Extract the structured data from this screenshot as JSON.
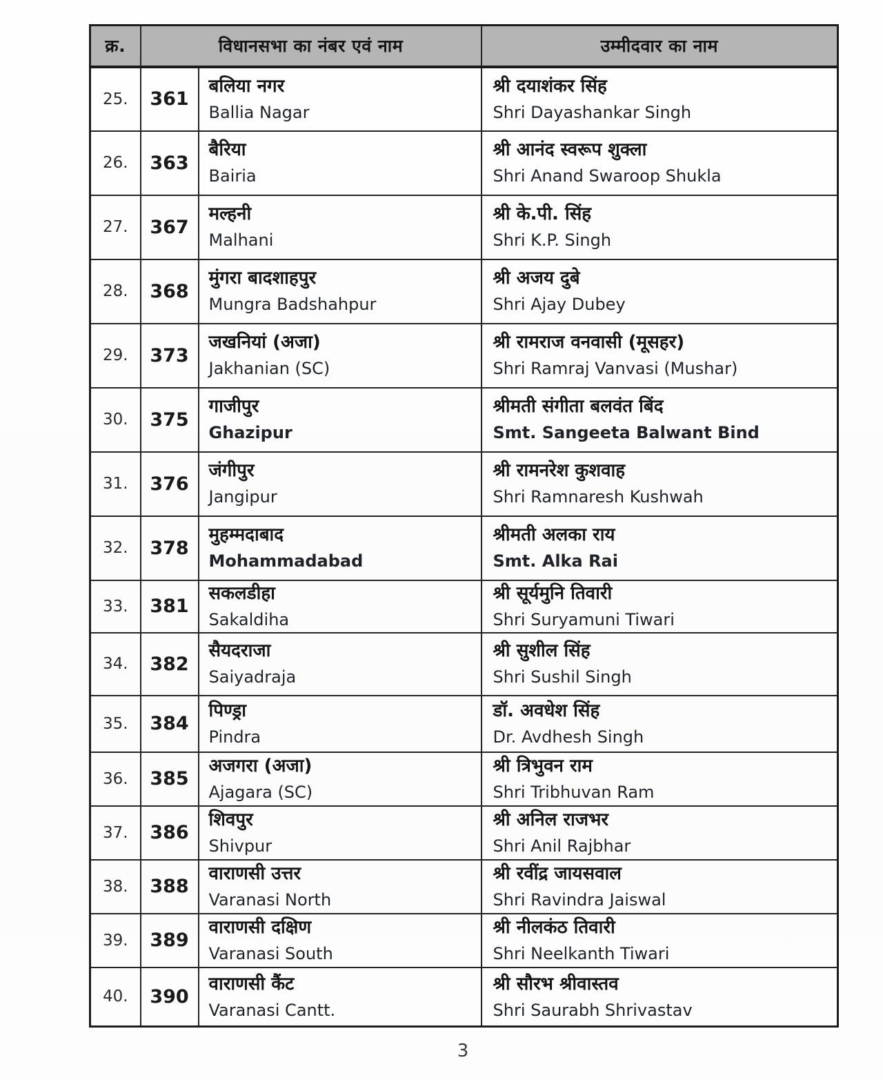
{
  "document": {
    "page_number": "3",
    "table": {
      "headers": {
        "serial": "क्र.",
        "constituency": "विधानसभा का नंबर एवं नाम",
        "candidate": "उम्मीदवार का नाम"
      },
      "rows": [
        {
          "serial": "25.",
          "number": "361",
          "name_hi": "बलिया नगर",
          "name_en": "Ballia Nagar",
          "candidate_hi": "श्री दयाशंकर सिंह",
          "candidate_en": "Shri Dayashankar Singh",
          "bold": false
        },
        {
          "serial": "26.",
          "number": "363",
          "name_hi": "बैरिया",
          "name_en": "Bairia",
          "candidate_hi": "श्री आनंद स्वरूप शुक्ला",
          "candidate_en": "Shri Anand Swaroop Shukla",
          "bold": false
        },
        {
          "serial": "27.",
          "number": "367",
          "name_hi": "मल्हनी",
          "name_en": "Malhani",
          "candidate_hi": "श्री के.पी. सिंह",
          "candidate_en": "Shri K.P. Singh",
          "bold": false
        },
        {
          "serial": "28.",
          "number": "368",
          "name_hi": "मुंगरा बादशाहपुर",
          "name_en": "Mungra Badshahpur",
          "candidate_hi": "श्री अजय दुबे",
          "candidate_en": "Shri Ajay Dubey",
          "bold": false
        },
        {
          "serial": "29.",
          "number": "373",
          "name_hi": "जखनियां (अजा)",
          "name_en": "Jakhanian (SC)",
          "candidate_hi": "श्री रामराज वनवासी (मूसहर)",
          "candidate_en": "Shri Ramraj Vanvasi (Mushar)",
          "bold": false
        },
        {
          "serial": "30.",
          "number": "375",
          "name_hi": "गाजीपुर",
          "name_en": "Ghazipur",
          "candidate_hi": "श्रीमती संगीता बलवंत बिंद",
          "candidate_en": "Smt. Sangeeta Balwant Bind",
          "bold": true
        },
        {
          "serial": "31.",
          "number": "376",
          "name_hi": "जंगीपुर",
          "name_en": "Jangipur",
          "candidate_hi": "श्री रामनरेश कुशवाह",
          "candidate_en": "Shri Ramnaresh Kushwah",
          "bold": false
        },
        {
          "serial": "32.",
          "number": "378",
          "name_hi": "मुहम्मदाबाद",
          "name_en": "Mohammadabad",
          "candidate_hi": "श्रीमती अलका राय",
          "candidate_en": "Smt. Alka Rai",
          "bold": true
        },
        {
          "serial": "33.",
          "number": "381",
          "name_hi": "सकलडीहा",
          "name_en": "Sakaldiha",
          "candidate_hi": "श्री सूर्यमुनि तिवारी",
          "candidate_en": "Shri Suryamuni Tiwari",
          "bold": false
        },
        {
          "serial": "34.",
          "number": "382",
          "name_hi": "सैयदराजा",
          "name_en": "Saiyadraja",
          "candidate_hi": "श्री सुशील सिंह",
          "candidate_en": "Shri Sushil Singh",
          "bold": false
        },
        {
          "serial": "35.",
          "number": "384",
          "name_hi": "पिण्ड्रा",
          "name_en": "Pindra",
          "candidate_hi": "डॉ. अवधेश सिंह",
          "candidate_en": "Dr. Avdhesh Singh",
          "bold": false
        },
        {
          "serial": "36.",
          "number": "385",
          "name_hi": "अजगरा (अजा)",
          "name_en": "Ajagara (SC)",
          "candidate_hi": "श्री त्रिभुवन राम",
          "candidate_en": "Shri Tribhuvan Ram",
          "bold": false
        },
        {
          "serial": "37.",
          "number": "386",
          "name_hi": "शिवपुर",
          "name_en": "Shivpur",
          "candidate_hi": "श्री अनिल राजभर",
          "candidate_en": "Shri Anil Rajbhar",
          "bold": false
        },
        {
          "serial": "38.",
          "number": "388",
          "name_hi": "वाराणसी उत्तर",
          "name_en": "Varanasi North",
          "candidate_hi": "श्री रवींद्र जायसवाल",
          "candidate_en": "Shri Ravindra Jaiswal",
          "bold": false
        },
        {
          "serial": "39.",
          "number": "389",
          "name_hi": "वाराणसी दक्षिण",
          "name_en": "Varanasi South",
          "candidate_hi": "श्री नीलकंठ तिवारी",
          "candidate_en": "Shri Neelkanth Tiwari",
          "bold": false
        },
        {
          "serial": "40.",
          "number": "390",
          "name_hi": "वाराणसी कैंट",
          "name_en": "Varanasi Cantt.",
          "candidate_hi": "श्री सौरभ श्रीवास्तव",
          "candidate_en": "Shri Saurabh Shrivastav",
          "bold": false
        }
      ]
    },
    "colors": {
      "header_background": "#b5b5b5",
      "border": "#242424",
      "text": "#161616"
    }
  }
}
